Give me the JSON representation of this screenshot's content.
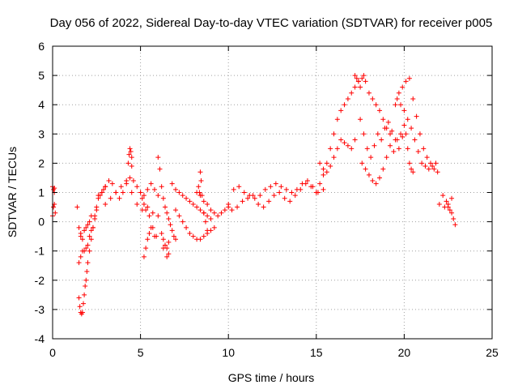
{
  "chart_data": {
    "type": "scatter",
    "title": "Day 056 of 2022, Sidereal Day-to-day VTEC variation (SDTVAR) for receiver p005",
    "xlabel": "GPS time / hours",
    "ylabel": "SDTVAR / TECUs",
    "xlim": [
      0,
      25
    ],
    "ylim": [
      -4,
      6
    ],
    "xticks": [
      "0",
      "5",
      "10",
      "15",
      "20",
      "25"
    ],
    "yticks": [
      "-4",
      "-3",
      "-2",
      "-1",
      "0",
      "1",
      "2",
      "3",
      "4",
      "5",
      "6"
    ],
    "grid": true,
    "legend": "none",
    "marker": "+",
    "color": "#ff0000",
    "series": [
      {
        "name": "SDTVAR",
        "x": [
          0.0,
          0.05,
          0.1,
          0.1,
          0.15,
          0.0,
          0.05,
          0.1,
          1.4,
          1.5,
          1.6,
          1.6,
          1.7,
          1.8,
          1.9,
          2.0,
          2.1,
          2.2,
          1.5,
          1.6,
          1.7,
          1.8,
          1.9,
          2.0,
          2.1,
          2.2,
          2.3,
          2.4,
          2.5,
          1.5,
          1.55,
          1.6,
          1.65,
          1.7,
          1.75,
          1.8,
          1.85,
          1.9,
          1.95,
          2.0,
          2.1,
          2.2,
          2.3,
          2.4,
          2.5,
          2.6,
          2.7,
          2.8,
          2.9,
          3.0,
          2.6,
          2.8,
          3.0,
          3.2,
          3.4,
          3.6,
          3.8,
          4.0,
          4.2,
          4.4,
          4.6,
          4.8,
          5.0,
          5.2,
          5.4,
          5.6,
          5.8,
          6.0,
          3.0,
          3.3,
          3.6,
          3.9,
          4.2,
          4.5,
          4.8,
          5.1,
          5.4,
          5.7,
          6.0,
          4.3,
          4.35,
          4.4,
          4.45,
          4.5,
          4.5,
          5.0,
          5.1,
          5.2,
          5.3,
          5.5,
          5.7,
          5.9,
          5.2,
          5.3,
          5.4,
          5.5,
          5.6,
          5.8,
          6.0,
          6.1,
          6.2,
          6.3,
          6.4,
          6.5,
          6.6,
          6.7,
          6.8,
          6.9,
          7.0,
          6.2,
          6.3,
          6.4,
          6.5,
          6.6,
          6.5,
          6.6,
          6.3,
          6.8,
          7.0,
          7.2,
          7.4,
          7.6,
          7.8,
          8.0,
          8.2,
          8.4,
          8.6,
          8.8,
          9.0,
          7.0,
          7.2,
          7.4,
          7.6,
          7.8,
          8.0,
          8.2,
          8.4,
          8.6,
          8.8,
          9.0,
          9.2,
          8.2,
          8.4,
          8.6,
          8.8,
          9.0,
          9.2,
          9.4,
          9.6,
          9.8,
          10.0,
          8.3,
          8.35,
          8.4,
          8.45,
          8.5,
          8.6,
          8.7,
          8.8,
          10.0,
          10.3,
          10.6,
          10.9,
          11.2,
          11.5,
          11.8,
          12.1,
          12.4,
          12.7,
          13.0,
          13.3,
          13.6,
          13.9,
          14.2,
          14.5,
          14.8,
          15.1,
          15.4,
          10.2,
          10.5,
          10.8,
          11.1,
          11.4,
          11.7,
          12.0,
          12.3,
          12.6,
          12.9,
          13.2,
          13.5,
          13.8,
          14.1,
          14.4,
          14.7,
          15.0,
          15.0,
          15.2,
          15.4,
          15.6,
          15.8,
          16.0,
          16.2,
          16.4,
          16.6,
          16.8,
          17.0,
          17.2,
          17.4,
          15.2,
          15.4,
          15.6,
          15.8,
          16.0,
          16.2,
          16.4,
          16.6,
          16.8,
          17.0,
          17.2,
          17.2,
          17.3,
          17.4,
          17.5,
          17.6,
          17.7,
          17.8,
          17.5,
          17.7,
          17.9,
          18.1,
          18.3,
          18.5,
          18.7,
          18.9,
          19.1,
          19.3,
          19.5,
          19.7,
          19.9,
          17.6,
          17.8,
          18.0,
          18.2,
          18.4,
          18.6,
          18.8,
          19.0,
          19.2,
          19.4,
          19.6,
          19.8,
          20.0,
          18.0,
          18.2,
          18.4,
          18.6,
          18.8,
          19.0,
          19.2,
          19.5,
          19.7,
          19.9,
          20.1,
          20.3,
          20.5,
          20.7,
          20.9,
          21.1,
          21.3,
          21.5,
          21.7,
          21.9,
          19.6,
          19.8,
          20.0,
          20.2,
          20.4,
          20.6,
          20.8,
          21.0,
          21.2,
          21.4,
          21.6,
          21.8,
          20.1,
          20.2,
          20.3,
          20.4,
          20.5,
          22.0,
          22.2,
          22.4,
          22.5,
          22.6,
          22.7,
          22.8,
          22.9,
          22.3,
          22.5,
          22.7
        ],
        "y": [
          1.2,
          1.1,
          1.0,
          0.6,
          0.3,
          0.2,
          0.5,
          1.15,
          0.5,
          -0.2,
          -0.4,
          -0.5,
          -0.6,
          -0.3,
          -0.2,
          -0.1,
          0.0,
          0.2,
          -1.4,
          -1.2,
          -1.0,
          -1.0,
          -0.9,
          -0.8,
          -0.5,
          -0.3,
          -0.2,
          0.1,
          0.4,
          -2.6,
          -2.9,
          -3.1,
          -3.15,
          -3.1,
          -2.8,
          -2.5,
          -2.2,
          -2.0,
          -1.7,
          -1.4,
          -1.0,
          -0.6,
          -0.2,
          0.2,
          0.5,
          0.8,
          0.9,
          1.0,
          1.1,
          1.2,
          0.9,
          1.0,
          1.2,
          1.4,
          1.3,
          1.0,
          0.8,
          1.0,
          1.3,
          1.5,
          1.4,
          1.2,
          1.0,
          0.9,
          1.1,
          1.3,
          1.1,
          0.9,
          0.6,
          0.8,
          1.0,
          1.2,
          1.4,
          1.0,
          0.6,
          0.4,
          0.5,
          0.3,
          0.2,
          2.0,
          2.3,
          2.5,
          2.4,
          2.2,
          1.9,
          1.0,
          0.8,
          0.6,
          0.4,
          0.2,
          -0.2,
          -0.5,
          -1.2,
          -0.9,
          -0.6,
          -0.4,
          -0.2,
          -0.5,
          2.2,
          1.8,
          1.2,
          0.8,
          0.5,
          0.3,
          0.1,
          -0.1,
          -0.3,
          -0.5,
          -0.6,
          -0.4,
          -0.6,
          -0.8,
          -0.9,
          -1.1,
          -1.2,
          -0.7,
          -0.9,
          1.3,
          1.1,
          1.0,
          0.9,
          0.8,
          0.7,
          0.6,
          0.5,
          0.4,
          0.3,
          0.2,
          0.1,
          0.4,
          0.2,
          0.0,
          -0.2,
          -0.4,
          -0.5,
          -0.6,
          -0.6,
          -0.5,
          -0.4,
          -0.3,
          -0.2,
          1.0,
          0.9,
          0.7,
          0.6,
          0.4,
          0.3,
          0.2,
          0.3,
          0.4,
          0.5,
          1.2,
          1.0,
          1.7,
          1.4,
          0.9,
          0.3,
          0.0,
          -0.3,
          0.6,
          1.1,
          1.2,
          1.0,
          0.9,
          0.8,
          0.9,
          1.1,
          1.2,
          1.3,
          1.2,
          1.1,
          1.0,
          1.1,
          1.3,
          1.4,
          1.2,
          1.0,
          1.1,
          0.4,
          0.5,
          0.7,
          0.8,
          0.9,
          0.6,
          0.5,
          0.7,
          0.9,
          1.0,
          0.8,
          0.7,
          0.9,
          1.1,
          1.3,
          1.2,
          1.0,
          1.0,
          1.3,
          1.6,
          2.0,
          2.5,
          3.0,
          3.5,
          3.8,
          4.0,
          4.2,
          4.4,
          4.6,
          4.8,
          2.0,
          1.8,
          1.7,
          1.9,
          2.2,
          2.5,
          2.8,
          2.7,
          2.6,
          2.5,
          2.8,
          5.0,
          4.9,
          4.8,
          4.6,
          4.9,
          5.0,
          4.8,
          3.5,
          3.0,
          2.5,
          2.2,
          2.6,
          3.0,
          2.8,
          3.2,
          3.4,
          3.1,
          2.8,
          2.5,
          2.9,
          2.0,
          1.8,
          1.6,
          1.4,
          1.3,
          1.5,
          1.8,
          2.2,
          2.6,
          2.4,
          2.8,
          3.0,
          3.3,
          4.4,
          4.2,
          4.0,
          3.8,
          3.5,
          3.2,
          3.0,
          4.0,
          4.4,
          4.6,
          4.8,
          4.9,
          4.2,
          3.6,
          3.0,
          2.5,
          2.2,
          2.0,
          1.8,
          1.7,
          4.2,
          4.0,
          3.8,
          3.5,
          3.2,
          2.8,
          2.4,
          2.0,
          1.9,
          1.8,
          1.9,
          2.0,
          3.0,
          2.5,
          2.0,
          1.8,
          1.7,
          0.6,
          0.9,
          0.7,
          0.5,
          0.4,
          0.3,
          0.1,
          -0.1,
          0.5,
          0.6,
          0.8
        ]
      }
    ]
  }
}
